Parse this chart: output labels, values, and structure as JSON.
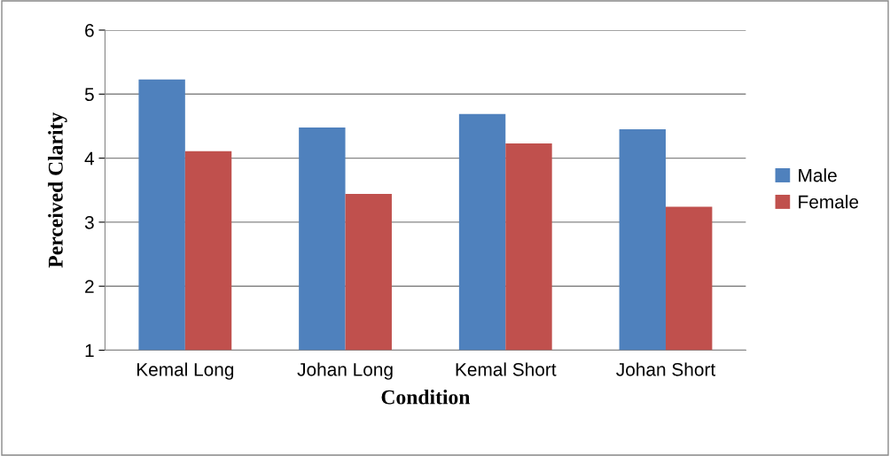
{
  "chart_data": {
    "type": "bar",
    "xlabel": "Condition",
    "ylabel": "Perceived Clarity",
    "categories": [
      "Kemal Long",
      "Johan Long",
      "Kemal Short",
      "Johan Short"
    ],
    "series": [
      {
        "name": "Male",
        "color": "#4f81bd",
        "values": [
          5.23,
          4.48,
          4.69,
          4.45
        ]
      },
      {
        "name": "Female",
        "color": "#c0504d",
        "values": [
          4.11,
          3.44,
          4.23,
          3.24
        ]
      }
    ],
    "ylim": [
      1,
      6
    ],
    "yticks": [
      1,
      2,
      3,
      4,
      5,
      6
    ],
    "grid": "y",
    "legend": "right"
  }
}
